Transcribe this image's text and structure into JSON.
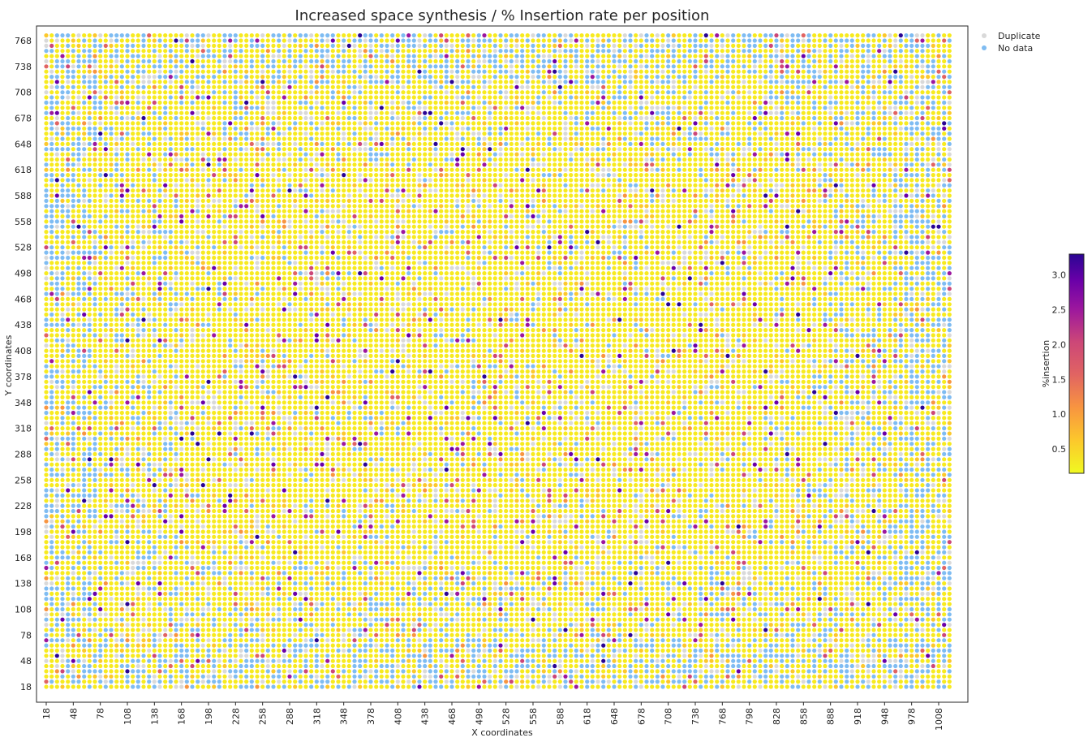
{
  "chart_data": {
    "type": "scatter",
    "title": "Increased space synthesis / % Insertion rate per position",
    "xlabel": "X coordinates",
    "ylabel": "Y coordinates",
    "xlim": [
      18,
      1022
    ],
    "ylim": [
      18,
      779
    ],
    "x_ticks": [
      "18",
      "48",
      "78",
      "108",
      "138",
      "168",
      "198",
      "228",
      "258",
      "288",
      "318",
      "348",
      "378",
      "408",
      "438",
      "468",
      "498",
      "528",
      "558",
      "588",
      "618",
      "648",
      "678",
      "708",
      "738",
      "768",
      "798",
      "828",
      "858",
      "888",
      "918",
      "948",
      "978",
      "1008"
    ],
    "y_ticks": [
      "768",
      "738",
      "708",
      "678",
      "648",
      "618",
      "588",
      "558",
      "528",
      "498",
      "468",
      "438",
      "408",
      "378",
      "348",
      "318",
      "288",
      "258",
      "228",
      "198",
      "168",
      "138",
      "108",
      "78",
      "48",
      "18"
    ],
    "grid": false,
    "legend_position": "top-right",
    "legend": [
      {
        "label": "Duplicate",
        "color": "#d9d9d9"
      },
      {
        "label": "No data",
        "color": "#7fbcf2"
      }
    ],
    "colorbar": {
      "label": "%insertion",
      "colormap": "plasma_r",
      "range": [
        0.15,
        3.3
      ],
      "ticks": [
        "0.5",
        "1.0",
        "1.5",
        "2.0",
        "2.5",
        "3.0"
      ]
    },
    "series": [
      {
        "name": "Duplicate",
        "color": "#d9d9d9"
      },
      {
        "name": "No data",
        "color": "#7fbcf2"
      }
    ],
    "grid_spacing": 6,
    "points_note": "dense grid of spots colored by %insertion; most values near 0.2 (yellow), sparse high values up to ~3.2 (dark purple)"
  }
}
